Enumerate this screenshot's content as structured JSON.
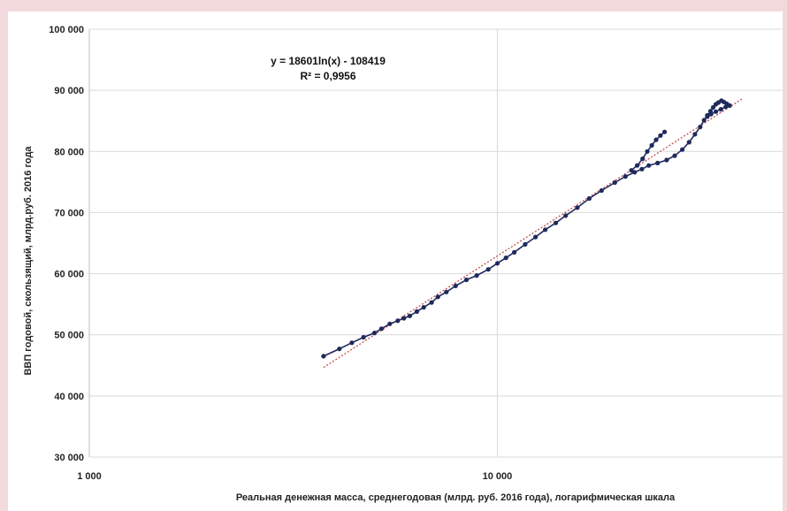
{
  "chart_data": {
    "type": "scatter",
    "x_scale": "log",
    "xlim": [
      1000,
      50000
    ],
    "ylim": [
      30000,
      100000
    ],
    "x_ticks": [
      1000,
      10000
    ],
    "x_tick_labels": [
      "1 000",
      "10 000"
    ],
    "y_ticks": [
      30000,
      40000,
      50000,
      60000,
      70000,
      80000,
      90000,
      100000
    ],
    "y_tick_labels": [
      "30 000",
      "40 000",
      "50 000",
      "60 000",
      "70 000",
      "80 000",
      "90 000",
      "100 000"
    ],
    "xlabel": "Реальная денежная масса, среднегодовая (млрд. руб. 2016 года), логарифмическая шкала",
    "ylabel": "ВВП годовой, скользящий, млрд.руб. 2016 года",
    "grid": true,
    "annotations": [
      "y = 18601ln(x) - 108419",
      "R² = 0,9956"
    ],
    "colors": {
      "series": "#1f2a5c",
      "trend": "#c0504d",
      "grid": "#d9d9d9",
      "background": "#f2d9db"
    },
    "trendline": {
      "kind": "logarithmic",
      "a": 18601,
      "b": -108419,
      "x_range": [
        3750,
        40000
      ]
    },
    "series": [
      {
        "values": [
          [
            3750,
            46500
          ],
          [
            4100,
            47700
          ],
          [
            4400,
            48700
          ],
          [
            4700,
            49600
          ],
          [
            5000,
            50300
          ],
          [
            5200,
            51000
          ],
          [
            5450,
            51800
          ],
          [
            5700,
            52300
          ],
          [
            5900,
            52700
          ],
          [
            6100,
            53100
          ],
          [
            6350,
            53800
          ],
          [
            6600,
            54500
          ],
          [
            6900,
            55300
          ],
          [
            7150,
            56200
          ],
          [
            7500,
            57000
          ],
          [
            7900,
            58000
          ],
          [
            8400,
            59000
          ],
          [
            8900,
            59700
          ],
          [
            9500,
            60700
          ],
          [
            10000,
            61700
          ],
          [
            10500,
            62600
          ],
          [
            11000,
            63500
          ],
          [
            11700,
            64800
          ],
          [
            12400,
            66000
          ],
          [
            13100,
            67200
          ],
          [
            13900,
            68300
          ],
          [
            14700,
            69500
          ],
          [
            15700,
            70800
          ],
          [
            16800,
            72300
          ],
          [
            18000,
            73600
          ],
          [
            19400,
            74900
          ],
          [
            20600,
            75900
          ],
          [
            21700,
            76600
          ],
          [
            22600,
            77100
          ],
          [
            23500,
            77700
          ],
          [
            24700,
            78100
          ],
          [
            26000,
            78600
          ],
          [
            27200,
            79300
          ],
          [
            28400,
            80300
          ],
          [
            29500,
            81500
          ],
          [
            30500,
            82800
          ],
          [
            31400,
            84000
          ],
          [
            32100,
            85100
          ],
          [
            32700,
            85900
          ],
          [
            33300,
            86600
          ],
          [
            33800,
            87200
          ],
          [
            34300,
            87700
          ],
          [
            34800,
            88000
          ],
          [
            35400,
            88300
          ],
          [
            35900,
            88100
          ],
          [
            36500,
            87800
          ],
          [
            37100,
            87500
          ],
          [
            36300,
            87300
          ],
          [
            35300,
            86900
          ],
          [
            34300,
            86500
          ],
          [
            33400,
            86100
          ],
          [
            32700,
            85700
          ]
        ]
      },
      {
        "values": [
          [
            21300,
            76900
          ],
          [
            22000,
            77700
          ],
          [
            22700,
            78800
          ],
          [
            23300,
            80000
          ],
          [
            23900,
            81000
          ],
          [
            24500,
            81900
          ],
          [
            25100,
            82600
          ],
          [
            25700,
            83200
          ]
        ]
      }
    ]
  }
}
